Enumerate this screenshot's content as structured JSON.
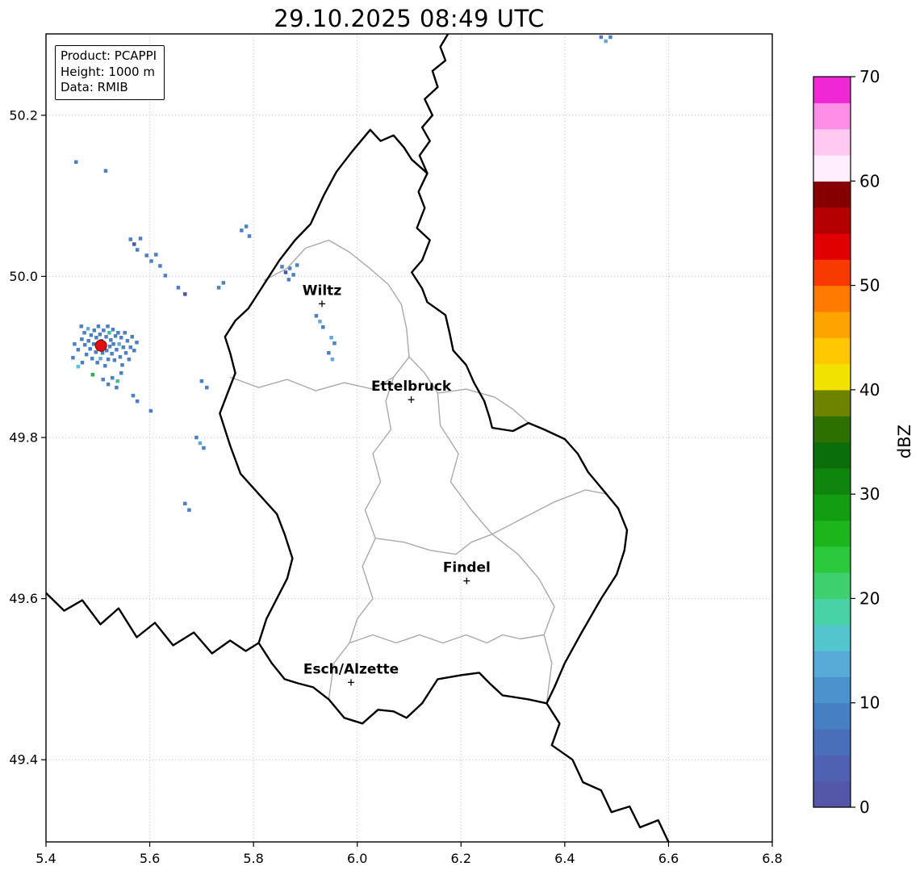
{
  "chart_data": {
    "type": "map",
    "title": "29.10.2025 08:49 UTC",
    "info_box": [
      "Product: PCAPPI",
      "Height: 1000 m",
      "Data: RMIB"
    ],
    "x_axis": {
      "ticks": [
        5.4,
        5.6,
        5.8,
        6.0,
        6.2,
        6.4,
        6.6,
        6.8
      ],
      "range": [
        5.4,
        6.8
      ]
    },
    "y_axis": {
      "ticks": [
        49.4,
        49.6,
        49.8,
        50.0,
        50.2
      ],
      "range": [
        49.298,
        50.301
      ]
    },
    "colorbar": {
      "label": "dBZ",
      "ticks": [
        0,
        10,
        20,
        30,
        40,
        50,
        60,
        70
      ],
      "range": [
        0,
        70
      ],
      "colors": [
        "#5457a8",
        "#4f62b2",
        "#4a6fba",
        "#467fc2",
        "#4b93cc",
        "#58abd6",
        "#52c6cc",
        "#49d2a5",
        "#3ed06e",
        "#2cc83e",
        "#1cb51c",
        "#129e12",
        "#0e860e",
        "#0a6e0a",
        "#2e7000",
        "#6e8400",
        "#f2e200",
        "#ffc800",
        "#ffa300",
        "#ff7a00",
        "#f63a00",
        "#e00000",
        "#b40000",
        "#870000",
        "#ffeefb",
        "#ffc9f2",
        "#ff8fe6",
        "#ef27d4"
      ]
    },
    "radar_site": {
      "lon": 5.506,
      "lat": 49.914,
      "color": "#e01010"
    },
    "cities": [
      {
        "name": "Wiltz",
        "lon": 5.932,
        "lat": 49.966
      },
      {
        "name": "Ettelbruck",
        "lon": 6.104,
        "lat": 49.847
      },
      {
        "name": "Findel",
        "lon": 6.211,
        "lat": 49.622
      },
      {
        "name": "Esch/Alzette",
        "lon": 5.988,
        "lat": 49.496
      }
    ],
    "echo_palette": [
      "#4a56a8",
      "#4c80c0",
      "#63a9d8",
      "#58c5cf",
      "#3fbf8f",
      "#2fae4f"
    ],
    "echoes": [
      [
        5.455,
        49.916,
        1
      ],
      [
        5.462,
        49.909,
        1
      ],
      [
        5.468,
        49.938,
        1
      ],
      [
        5.469,
        49.922,
        1
      ],
      [
        5.474,
        49.93,
        1
      ],
      [
        5.475,
        49.915,
        1
      ],
      [
        5.478,
        49.903,
        1
      ],
      [
        5.481,
        49.935,
        2
      ],
      [
        5.482,
        49.92,
        1
      ],
      [
        5.485,
        49.91,
        1
      ],
      [
        5.487,
        49.927,
        1
      ],
      [
        5.489,
        49.898,
        1
      ],
      [
        5.49,
        49.878,
        5
      ],
      [
        5.492,
        49.916,
        1
      ],
      [
        5.493,
        49.933,
        1
      ],
      [
        5.496,
        49.906,
        1
      ],
      [
        5.497,
        49.924,
        1
      ],
      [
        5.499,
        49.893,
        1
      ],
      [
        5.501,
        49.938,
        1
      ],
      [
        5.502,
        49.912,
        1
      ],
      [
        5.504,
        49.928,
        1
      ],
      [
        5.505,
        49.898,
        2
      ],
      [
        5.507,
        49.92,
        1
      ],
      [
        5.509,
        49.905,
        1
      ],
      [
        5.511,
        49.933,
        1
      ],
      [
        5.512,
        49.916,
        1
      ],
      [
        5.514,
        49.889,
        1
      ],
      [
        5.516,
        49.925,
        1
      ],
      [
        5.517,
        49.908,
        1
      ],
      [
        5.519,
        49.938,
        1
      ],
      [
        5.52,
        49.897,
        1
      ],
      [
        5.522,
        49.93,
        4
      ],
      [
        5.523,
        49.913,
        1
      ],
      [
        5.525,
        49.921,
        1
      ],
      [
        5.527,
        49.904,
        1
      ],
      [
        5.529,
        49.934,
        1
      ],
      [
        5.53,
        49.916,
        1
      ],
      [
        5.532,
        49.896,
        1
      ],
      [
        5.534,
        49.926,
        1
      ],
      [
        5.536,
        49.909,
        1
      ],
      [
        5.538,
        49.87,
        4
      ],
      [
        5.539,
        49.93,
        1
      ],
      [
        5.541,
        49.916,
        2
      ],
      [
        5.543,
        49.9,
        1
      ],
      [
        5.545,
        49.924,
        1
      ],
      [
        5.547,
        49.89,
        1
      ],
      [
        5.549,
        49.912,
        1
      ],
      [
        5.552,
        49.93,
        1
      ],
      [
        5.554,
        49.905,
        1
      ],
      [
        5.557,
        49.92,
        1
      ],
      [
        5.56,
        49.897,
        1
      ],
      [
        5.563,
        49.912,
        1
      ],
      [
        5.566,
        49.925,
        1
      ],
      [
        5.57,
        49.908,
        1
      ],
      [
        5.575,
        49.918,
        1
      ],
      [
        5.51,
        49.872,
        1
      ],
      [
        5.52,
        49.866,
        1
      ],
      [
        5.528,
        49.874,
        1
      ],
      [
        5.536,
        49.862,
        1
      ],
      [
        5.545,
        49.88,
        1
      ],
      [
        5.462,
        49.888,
        3
      ],
      [
        5.47,
        49.893,
        1
      ],
      [
        5.452,
        49.899,
        1
      ],
      [
        5.568,
        49.852,
        1
      ],
      [
        5.576,
        49.845,
        1
      ],
      [
        5.602,
        49.833,
        1
      ],
      [
        5.69,
        49.8,
        1
      ],
      [
        5.697,
        49.793,
        2
      ],
      [
        5.704,
        49.787,
        1
      ],
      [
        5.668,
        49.718,
        1
      ],
      [
        5.676,
        49.71,
        1
      ],
      [
        5.7,
        49.87,
        1
      ],
      [
        5.71,
        49.862,
        1
      ],
      [
        5.458,
        50.142,
        1
      ],
      [
        5.515,
        50.131,
        1
      ],
      [
        5.563,
        50.046,
        1
      ],
      [
        5.57,
        50.04,
        0
      ],
      [
        5.582,
        50.047,
        1
      ],
      [
        5.576,
        50.033,
        1
      ],
      [
        5.594,
        50.026,
        1
      ],
      [
        5.603,
        50.019,
        1
      ],
      [
        5.612,
        50.027,
        1
      ],
      [
        5.62,
        50.013,
        1
      ],
      [
        5.63,
        50.001,
        1
      ],
      [
        5.655,
        49.986,
        1
      ],
      [
        5.668,
        49.978,
        0
      ],
      [
        5.733,
        49.986,
        1
      ],
      [
        5.742,
        49.992,
        1
      ],
      [
        5.777,
        50.057,
        1
      ],
      [
        5.786,
        50.062,
        1
      ],
      [
        5.792,
        50.05,
        1
      ],
      [
        5.855,
        50.012,
        1
      ],
      [
        5.862,
        50.005,
        0
      ],
      [
        5.87,
        50.01,
        1
      ],
      [
        5.877,
        50.002,
        1
      ],
      [
        5.884,
        50.014,
        1
      ],
      [
        5.868,
        49.996,
        1
      ],
      [
        5.921,
        49.951,
        1
      ],
      [
        5.928,
        49.944,
        2
      ],
      [
        5.934,
        49.937,
        1
      ],
      [
        5.95,
        49.924,
        2
      ],
      [
        5.956,
        49.917,
        1
      ],
      [
        5.945,
        49.905,
        1
      ],
      [
        5.952,
        49.897,
        2
      ],
      [
        6.47,
        50.297,
        1
      ],
      [
        6.479,
        50.292,
        2
      ],
      [
        6.488,
        50.297,
        1
      ]
    ],
    "borders": {
      "luxembourg": [
        [
          6.025,
          50.182
        ],
        [
          6.045,
          50.168
        ],
        [
          6.07,
          50.175
        ],
        [
          6.09,
          50.16
        ],
        [
          6.105,
          50.145
        ],
        [
          6.135,
          50.128
        ],
        [
          6.118,
          50.105
        ],
        [
          6.13,
          50.085
        ],
        [
          6.115,
          50.06
        ],
        [
          6.14,
          50.045
        ],
        [
          6.125,
          50.02
        ],
        [
          6.105,
          50.005
        ],
        [
          6.125,
          49.985
        ],
        [
          6.135,
          49.968
        ],
        [
          6.17,
          49.952
        ],
        [
          6.178,
          49.93
        ],
        [
          6.185,
          49.908
        ],
        [
          6.21,
          49.89
        ],
        [
          6.225,
          49.868
        ],
        [
          6.245,
          49.845
        ],
        [
          6.255,
          49.825
        ],
        [
          6.26,
          49.812
        ],
        [
          6.3,
          49.808
        ],
        [
          6.33,
          49.818
        ],
        [
          6.36,
          49.81
        ],
        [
          6.4,
          49.798
        ],
        [
          6.425,
          49.78
        ],
        [
          6.445,
          49.757
        ],
        [
          6.48,
          49.73
        ],
        [
          6.503,
          49.712
        ],
        [
          6.52,
          49.685
        ],
        [
          6.515,
          49.66
        ],
        [
          6.5,
          49.63
        ],
        [
          6.47,
          49.6
        ],
        [
          6.43,
          49.555
        ],
        [
          6.4,
          49.52
        ],
        [
          6.38,
          49.49
        ],
        [
          6.365,
          49.47
        ],
        [
          6.33,
          49.475
        ],
        [
          6.28,
          49.48
        ],
        [
          6.255,
          49.495
        ],
        [
          6.235,
          49.508
        ],
        [
          6.2,
          49.505
        ],
        [
          6.155,
          49.5
        ],
        [
          6.125,
          49.47
        ],
        [
          6.095,
          49.452
        ],
        [
          6.07,
          49.46
        ],
        [
          6.04,
          49.462
        ],
        [
          6.01,
          49.445
        ],
        [
          5.975,
          49.452
        ],
        [
          5.945,
          49.475
        ],
        [
          5.915,
          49.49
        ],
        [
          5.885,
          49.495
        ],
        [
          5.86,
          49.5
        ],
        [
          5.835,
          49.52
        ],
        [
          5.81,
          49.545
        ],
        [
          5.825,
          49.575
        ],
        [
          5.845,
          49.6
        ],
        [
          5.865,
          49.625
        ],
        [
          5.875,
          49.65
        ],
        [
          5.86,
          49.68
        ],
        [
          5.845,
          49.705
        ],
        [
          5.81,
          49.73
        ],
        [
          5.775,
          49.755
        ],
        [
          5.755,
          49.79
        ],
        [
          5.735,
          49.83
        ],
        [
          5.75,
          49.855
        ],
        [
          5.765,
          49.88
        ],
        [
          5.755,
          49.905
        ],
        [
          5.745,
          49.925
        ],
        [
          5.765,
          49.945
        ],
        [
          5.79,
          49.96
        ],
        [
          5.82,
          49.99
        ],
        [
          5.85,
          50.02
        ],
        [
          5.88,
          50.045
        ],
        [
          5.91,
          50.065
        ],
        [
          5.935,
          50.1
        ],
        [
          5.96,
          50.13
        ],
        [
          5.99,
          50.155
        ]
      ],
      "neighbor_lines": [
        [
          [
            6.175,
            50.301
          ],
          [
            6.16,
            50.285
          ],
          [
            6.17,
            50.268
          ],
          [
            6.145,
            50.255
          ],
          [
            6.155,
            50.235
          ],
          [
            6.13,
            50.22
          ],
          [
            6.145,
            50.2
          ],
          [
            6.125,
            50.185
          ],
          [
            6.14,
            50.168
          ],
          [
            6.12,
            50.15
          ],
          [
            6.135,
            50.128
          ]
        ],
        [
          [
            5.4,
            49.607
          ],
          [
            5.435,
            49.585
          ],
          [
            5.47,
            49.598
          ],
          [
            5.505,
            49.568
          ],
          [
            5.54,
            49.588
          ],
          [
            5.575,
            49.552
          ],
          [
            5.61,
            49.57
          ],
          [
            5.645,
            49.542
          ],
          [
            5.685,
            49.558
          ],
          [
            5.72,
            49.532
          ],
          [
            5.755,
            49.548
          ],
          [
            5.785,
            49.535
          ],
          [
            5.81,
            49.545
          ]
        ],
        [
          [
            6.365,
            49.47
          ],
          [
            6.39,
            49.445
          ],
          [
            6.375,
            49.418
          ],
          [
            6.415,
            49.4
          ],
          [
            6.435,
            49.372
          ],
          [
            6.47,
            49.362
          ],
          [
            6.49,
            49.335
          ],
          [
            6.525,
            49.342
          ],
          [
            6.545,
            49.316
          ],
          [
            6.58,
            49.325
          ],
          [
            6.6,
            49.298
          ]
        ]
      ],
      "districts": [
        [
          [
            5.82,
            49.995
          ],
          [
            5.865,
            50.01
          ],
          [
            5.9,
            50.035
          ],
          [
            5.945,
            50.045
          ],
          [
            5.985,
            50.03
          ],
          [
            6.02,
            50.012
          ],
          [
            6.06,
            49.99
          ],
          [
            6.085,
            49.965
          ],
          [
            6.095,
            49.935
          ],
          [
            6.1,
            49.9
          ]
        ],
        [
          [
            6.1,
            49.9
          ],
          [
            6.07,
            49.875
          ],
          [
            6.055,
            49.845
          ],
          [
            6.065,
            49.81
          ],
          [
            6.03,
            49.78
          ],
          [
            6.045,
            49.745
          ],
          [
            6.015,
            49.71
          ],
          [
            6.035,
            49.675
          ],
          [
            6.01,
            49.64
          ],
          [
            6.03,
            49.6
          ],
          [
            6.0,
            49.575
          ],
          [
            5.985,
            49.545
          ],
          [
            5.955,
            49.52
          ],
          [
            5.945,
            49.475
          ]
        ],
        [
          [
            6.1,
            49.9
          ],
          [
            6.13,
            49.88
          ],
          [
            6.155,
            49.855
          ],
          [
            6.16,
            49.815
          ],
          [
            6.195,
            49.78
          ],
          [
            6.18,
            49.745
          ],
          [
            6.22,
            49.71
          ],
          [
            6.26,
            49.68
          ],
          [
            6.31,
            49.655
          ],
          [
            6.35,
            49.625
          ],
          [
            6.38,
            49.59
          ],
          [
            6.36,
            49.555
          ],
          [
            6.375,
            49.52
          ],
          [
            6.365,
            49.47
          ]
        ],
        [
          [
            6.26,
            49.68
          ],
          [
            6.32,
            49.7
          ],
          [
            6.38,
            49.72
          ],
          [
            6.44,
            49.735
          ],
          [
            6.48,
            49.73
          ]
        ],
        [
          [
            6.155,
            49.855
          ],
          [
            6.21,
            49.86
          ],
          [
            6.265,
            49.85
          ],
          [
            6.3,
            49.835
          ],
          [
            6.33,
            49.818
          ]
        ],
        [
          [
            6.035,
            49.675
          ],
          [
            6.09,
            49.67
          ],
          [
            6.14,
            49.66
          ],
          [
            6.19,
            49.655
          ],
          [
            6.22,
            49.67
          ],
          [
            6.26,
            49.68
          ]
        ],
        [
          [
            5.985,
            49.545
          ],
          [
            6.03,
            49.555
          ],
          [
            6.075,
            49.545
          ],
          [
            6.12,
            49.555
          ],
          [
            6.165,
            49.545
          ],
          [
            6.21,
            49.555
          ],
          [
            6.25,
            49.545
          ],
          [
            6.28,
            49.555
          ],
          [
            6.315,
            49.55
          ],
          [
            6.36,
            49.555
          ]
        ],
        [
          [
            5.755,
            49.875
          ],
          [
            5.81,
            49.862
          ],
          [
            5.865,
            49.872
          ],
          [
            5.92,
            49.858
          ],
          [
            5.975,
            49.868
          ],
          [
            6.03,
            49.86
          ],
          [
            6.07,
            49.875
          ]
        ]
      ]
    },
    "styles": {
      "border_color": "#000000",
      "district_color": "#a9a9a9",
      "grid_color": "#c0c0c0"
    }
  }
}
